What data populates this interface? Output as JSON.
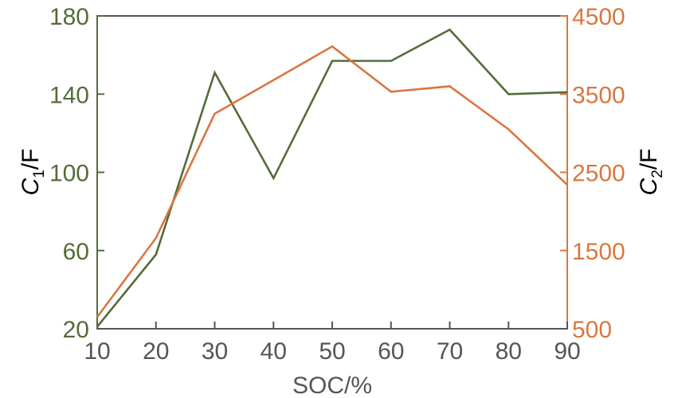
{
  "chart_data": {
    "type": "line",
    "x": [
      10,
      20,
      30,
      40,
      50,
      60,
      70,
      80,
      90
    ],
    "xlim": [
      10,
      90
    ],
    "xticks": [
      "10",
      "20",
      "30",
      "40",
      "50",
      "60",
      "70",
      "80",
      "90"
    ],
    "xlabel": "SOC/%",
    "y_left": {
      "label_main": "C",
      "label_sub": "1",
      "label_unit": "/F",
      "lim": [
        20,
        180
      ],
      "ticks": [
        "20",
        "60",
        "100",
        "140",
        "180"
      ],
      "color": "#556b3a"
    },
    "y_right": {
      "label_main": "C",
      "label_sub": "2",
      "label_unit": "/F",
      "lim": [
        500,
        4500
      ],
      "ticks": [
        "500",
        "1500",
        "2500",
        "3500",
        "4500"
      ],
      "color": "#d9773f"
    },
    "series": [
      {
        "axis": "left",
        "color": "#556b3a",
        "values": [
          21,
          58,
          151,
          97,
          157,
          157,
          173,
          140,
          141
        ]
      },
      {
        "axis": "right",
        "color": "#d9773f",
        "values": [
          650,
          1660,
          3250,
          3680,
          4110,
          3530,
          3600,
          3050,
          2340
        ]
      }
    ],
    "grid": false,
    "legend": "none"
  }
}
